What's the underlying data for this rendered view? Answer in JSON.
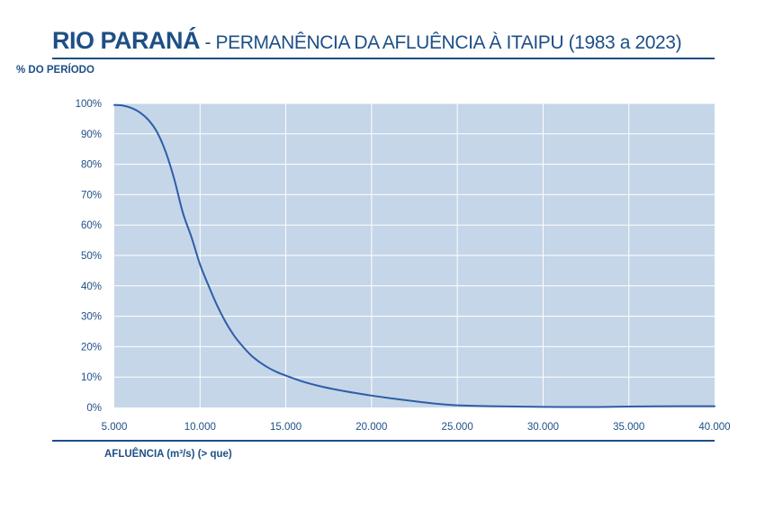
{
  "title": {
    "main": "RIO PARANÁ",
    "sub": " - PERMANÊNCIA DA AFLUÊNCIA À ITAIPU (1983 a 2023)"
  },
  "chart_data": {
    "type": "line",
    "ylabel": "% DO PERÍODO",
    "xlabel": "AFLUÊNCIA (m³/s) (> que)",
    "xlim": [
      5000,
      40000
    ],
    "ylim": [
      0,
      100
    ],
    "x_ticks": [
      5000,
      10000,
      15000,
      20000,
      25000,
      30000,
      35000,
      40000
    ],
    "x_tick_labels": [
      "5.000",
      "10.000",
      "15.000",
      "20.000",
      "25.000",
      "30.000",
      "35.000",
      "40.000"
    ],
    "y_ticks": [
      0,
      10,
      20,
      30,
      40,
      50,
      60,
      70,
      80,
      90,
      100
    ],
    "y_tick_labels": [
      "0%",
      "10%",
      "20%",
      "30%",
      "40%",
      "50%",
      "60%",
      "70%",
      "80%",
      "90%",
      "100%"
    ],
    "grid": true,
    "series": [
      {
        "color": "#2f5da7",
        "x": [
          5000,
          5500,
          6000,
          6500,
          7000,
          7500,
          8000,
          8500,
          9000,
          9500,
          10000,
          10500,
          11000,
          11500,
          12000,
          12500,
          13000,
          13500,
          14000,
          14500,
          15000,
          16000,
          17000,
          18000,
          19000,
          20000,
          21000,
          22000,
          23000,
          24000,
          25000,
          27000,
          30000,
          33000,
          35000,
          38000,
          40000
        ],
        "y": [
          99.5,
          99.3,
          98.5,
          97,
          94.5,
          90.5,
          84,
          75,
          64,
          56,
          47,
          40,
          33.5,
          28,
          23.5,
          20,
          17,
          14.8,
          13,
          11.6,
          10.5,
          8.5,
          7,
          5.8,
          4.8,
          3.9,
          3.1,
          2.4,
          1.7,
          1.1,
          0.7,
          0.4,
          0.2,
          0.15,
          0.3,
          0.4,
          0.4
        ]
      }
    ]
  },
  "colors": {
    "plot_bg": "#c5d6e8",
    "grid": "#ffffff",
    "text": "#1e4f86",
    "line": "#2f5da7"
  }
}
